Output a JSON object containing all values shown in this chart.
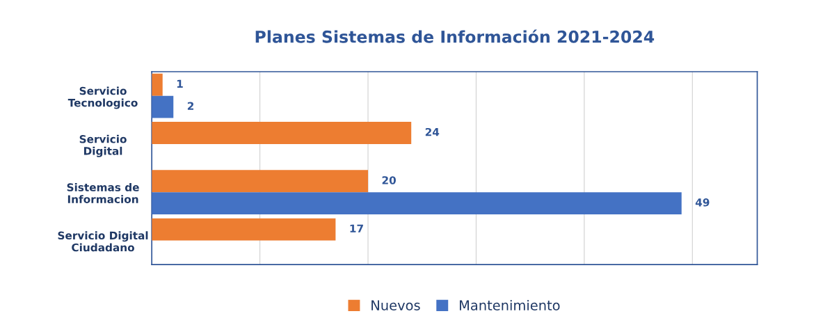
{
  "chart_data": {
    "type": "bar",
    "orientation": "horizontal",
    "title": "Planes Sistemas de Información 2021-2024",
    "categories": [
      "Servicio\nTecnologico",
      "Servicio\nDigital",
      "Sistemas de\nInformacion",
      "Servicio Digital\nCiudadano"
    ],
    "series": [
      {
        "name": "Nuevos",
        "color": "#ed7d31",
        "values": [
          1,
          24,
          20,
          17
        ]
      },
      {
        "name": "Mantenimiento",
        "color": "#4472c4",
        "values": [
          2,
          null,
          49,
          null
        ]
      }
    ],
    "xlim": [
      0,
      56
    ],
    "xticks": [
      {
        "value": 0,
        "label": null
      },
      {
        "value": 10,
        "label": null
      },
      {
        "value": 20,
        "label": null
      },
      {
        "value": 30,
        "label": null
      },
      {
        "value": 40,
        "label": null
      },
      {
        "value": 50,
        "label": null
      }
    ],
    "tick_labels": "y",
    "grid": "x",
    "legend": "bottom",
    "data_labels": true
  }
}
